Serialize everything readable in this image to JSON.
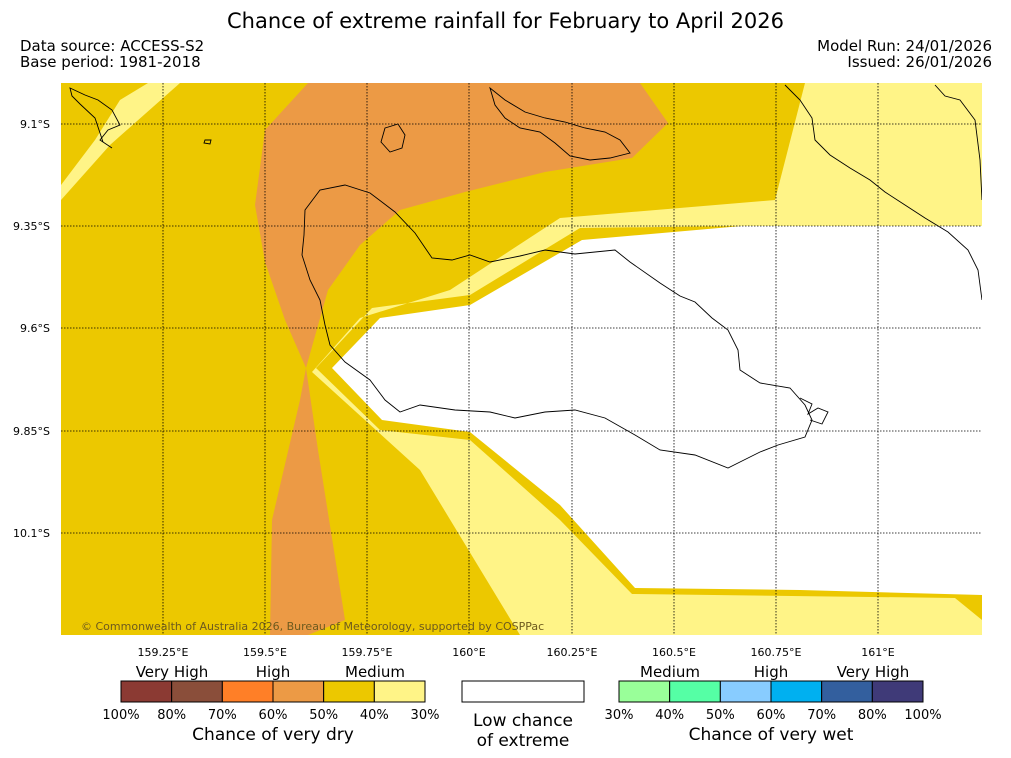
{
  "title": "Chance of extreme rainfall for February to April 2026",
  "data_source": "Data source: ACCESS-S2",
  "base_period": "Base period: 1981-2018",
  "model_run": "Model Run: 24/01/2026",
  "issued": "Issued: 26/01/2026",
  "credit": "© Commonwealth of Australia 2026, Bureau of Meteorology, supported by COSPPac",
  "lat_labels": [
    "9.1°S",
    "9.35°S",
    "9.6°S",
    "9.85°S",
    "10.1°S"
  ],
  "lon_labels": [
    "159.25°E",
    "159.5°E",
    "159.75°E",
    "160°E",
    "160.25°E",
    "160.5°E",
    "160.75°E",
    "161°E"
  ],
  "dry_legend": {
    "categories": [
      "Very High",
      "High",
      "Medium"
    ],
    "ticks": [
      "100%",
      "80%",
      "70%",
      "60%",
      "50%",
      "40%",
      "30%"
    ],
    "colors": [
      "#8b3a33",
      "#8a4e3a",
      "#ff7f27",
      "#ec9a45",
      "#ecc800",
      "#fff487"
    ],
    "caption": "Chance of very dry"
  },
  "low_legend": {
    "caption_line1": "Low chance",
    "caption_line2": "of extreme",
    "color": "#ffffff"
  },
  "wet_legend": {
    "categories": [
      "Medium",
      "High",
      "Very High"
    ],
    "ticks": [
      "30%",
      "40%",
      "50%",
      "60%",
      "70%",
      "80%",
      "100%"
    ],
    "colors": [
      "#99ff99",
      "#55ffa5",
      "#88ccff",
      "#00b0f0",
      "#335f9e",
      "#3f3a78"
    ],
    "caption": "Chance of very wet"
  }
}
